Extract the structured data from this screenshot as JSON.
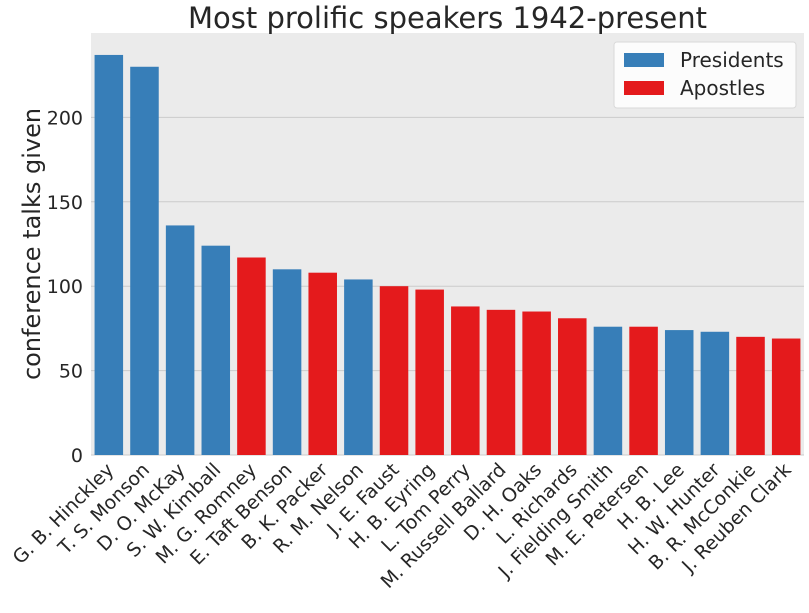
{
  "chart_data": {
    "type": "bar",
    "title": "Most prolific speakers 1942-present",
    "xlabel": "",
    "ylabel": "conference talks given",
    "ylim": [
      0,
      250
    ],
    "yticks": [
      0,
      50,
      100,
      150,
      200
    ],
    "grid": true,
    "legend": {
      "placement": "top-right",
      "entries": [
        {
          "name": "Presidents",
          "color": "#377eb8"
        },
        {
          "name": "Apostles",
          "color": "#e41a1c"
        }
      ]
    },
    "categories": [
      "G. B. Hinckley",
      "T. S. Monson",
      "D. O. McKay",
      "S. W. Kimball",
      "M. G. Romney",
      "E. Taft Benson",
      "B. K. Packer",
      "R. M. Nelson",
      "J. E. Faust",
      "H. B. Eyring",
      "L. Tom Perry",
      "M. Russell Ballard",
      "D. H. Oaks",
      "L. Richards",
      "J. Fielding Smith",
      "M. E. Petersen",
      "H. B. Lee",
      "H. W. Hunter",
      "B. R. McConkie",
      "J. Reuben Clark"
    ],
    "values": [
      237,
      230,
      136,
      124,
      117,
      110,
      108,
      104,
      100,
      98,
      88,
      86,
      85,
      81,
      76,
      76,
      74,
      73,
      70,
      69
    ],
    "groups": [
      "Presidents",
      "Presidents",
      "Presidents",
      "Presidents",
      "Apostles",
      "Presidents",
      "Apostles",
      "Presidents",
      "Apostles",
      "Apostles",
      "Apostles",
      "Apostles",
      "Apostles",
      "Apostles",
      "Presidents",
      "Apostles",
      "Presidents",
      "Presidents",
      "Apostles",
      "Apostles"
    ]
  },
  "colors": {
    "plot_background": "#ebebeb",
    "grid": "#cbcbcb"
  }
}
